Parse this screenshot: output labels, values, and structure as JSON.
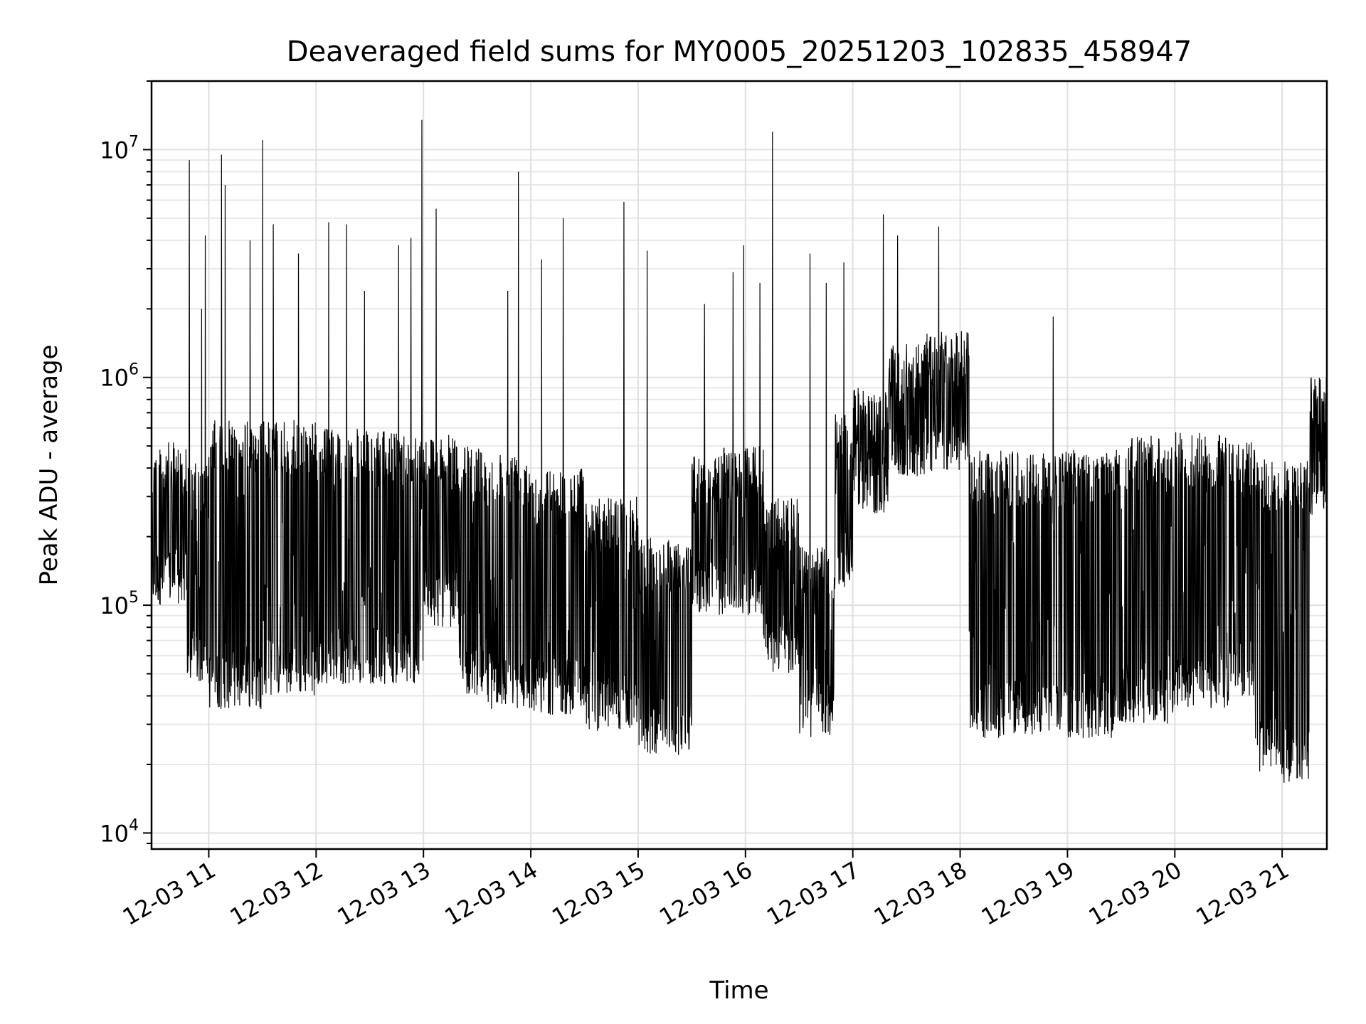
{
  "chart_data": {
    "type": "line",
    "title": "Deaveraged field sums for MY0005_20251203_102835_458947",
    "xlabel": "Time",
    "ylabel": "Peak ADU - average",
    "yscale": "log",
    "ylim": [
      8500,
      20000000
    ],
    "xlim": [
      "2025-12-03 10:28",
      "2025-12-03 21:25"
    ],
    "grid": true,
    "x_ticks": [
      "12-03 11",
      "12-03 12",
      "12-03 13",
      "12-03 14",
      "12-03 15",
      "12-03 16",
      "12-03 17",
      "12-03 18",
      "12-03 19",
      "12-03 20",
      "12-03 21"
    ],
    "y_ticks": [
      {
        "base": "10",
        "exp": "4",
        "value": 10000
      },
      {
        "base": "10",
        "exp": "5",
        "value": 100000
      },
      {
        "base": "10",
        "exp": "6",
        "value": 1000000
      },
      {
        "base": "10",
        "exp": "7",
        "value": 10000000
      }
    ],
    "series": [
      {
        "color": "#000000",
        "segments": [
          {
            "start": "2025-12-03 10:28",
            "end": "2025-12-03 10:48",
            "low": 100000,
            "high": 520000
          },
          {
            "start": "2025-12-03 10:48",
            "end": "2025-12-03 11:00",
            "low": 45000,
            "high": 420000
          },
          {
            "start": "2025-12-03 11:00",
            "end": "2025-12-03 11:30",
            "low": 35000,
            "high": 650000
          },
          {
            "start": "2025-12-03 11:30",
            "end": "2025-12-03 12:00",
            "low": 40000,
            "high": 650000
          },
          {
            "start": "2025-12-03 12:00",
            "end": "2025-12-03 12:30",
            "low": 45000,
            "high": 600000
          },
          {
            "start": "2025-12-03 12:30",
            "end": "2025-12-03 13:00",
            "low": 45000,
            "high": 580000
          },
          {
            "start": "2025-12-03 13:00",
            "end": "2025-12-03 13:20",
            "low": 80000,
            "high": 560000
          },
          {
            "start": "2025-12-03 13:20",
            "end": "2025-12-03 13:35",
            "low": 40000,
            "high": 500000
          },
          {
            "start": "2025-12-03 13:35",
            "end": "2025-12-03 14:00",
            "low": 35000,
            "high": 480000
          },
          {
            "start": "2025-12-03 14:00",
            "end": "2025-12-03 14:30",
            "low": 33000,
            "high": 400000
          },
          {
            "start": "2025-12-03 14:30",
            "end": "2025-12-03 15:00",
            "low": 28000,
            "high": 300000
          },
          {
            "start": "2025-12-03 15:00",
            "end": "2025-12-03 15:30",
            "low": 22000,
            "high": 200000
          },
          {
            "start": "2025-12-03 15:30",
            "end": "2025-12-03 15:45",
            "low": 90000,
            "high": 450000
          },
          {
            "start": "2025-12-03 15:45",
            "end": "2025-12-03 16:10",
            "low": 90000,
            "high": 500000
          },
          {
            "start": "2025-12-03 16:10",
            "end": "2025-12-03 16:30",
            "low": 50000,
            "high": 300000
          },
          {
            "start": "2025-12-03 16:30",
            "end": "2025-12-03 16:50",
            "low": 26000,
            "high": 180000
          },
          {
            "start": "2025-12-03 16:50",
            "end": "2025-12-03 17:00",
            "low": 120000,
            "high": 700000
          },
          {
            "start": "2025-12-03 17:00",
            "end": "2025-12-03 17:20",
            "low": 250000,
            "high": 900000
          },
          {
            "start": "2025-12-03 17:20",
            "end": "2025-12-03 17:40",
            "low": 350000,
            "high": 1400000
          },
          {
            "start": "2025-12-03 17:40",
            "end": "2025-12-03 18:05",
            "low": 380000,
            "high": 1600000
          },
          {
            "start": "2025-12-03 18:05",
            "end": "2025-12-03 18:30",
            "low": 26000,
            "high": 480000
          },
          {
            "start": "2025-12-03 18:30",
            "end": "2025-12-03 19:00",
            "low": 27000,
            "high": 480000
          },
          {
            "start": "2025-12-03 19:00",
            "end": "2025-12-03 19:30",
            "low": 26000,
            "high": 490000
          },
          {
            "start": "2025-12-03 19:30",
            "end": "2025-12-03 20:00",
            "low": 30000,
            "high": 560000
          },
          {
            "start": "2025-12-03 20:00",
            "end": "2025-12-03 20:30",
            "low": 35000,
            "high": 580000
          },
          {
            "start": "2025-12-03 20:30",
            "end": "2025-12-03 20:45",
            "low": 40000,
            "high": 520000
          },
          {
            "start": "2025-12-03 20:45",
            "end": "2025-12-03 21:00",
            "low": 18000,
            "high": 450000
          },
          {
            "start": "2025-12-03 21:00",
            "end": "2025-12-03 21:15",
            "low": 16000,
            "high": 430000
          },
          {
            "start": "2025-12-03 21:15",
            "end": "2025-12-03 21:25",
            "low": 250000,
            "high": 1000000
          }
        ],
        "spikes": [
          {
            "t": "2025-12-03 10:49",
            "y": 9000000
          },
          {
            "t": "2025-12-03 10:56",
            "y": 2000000
          },
          {
            "t": "2025-12-03 10:58",
            "y": 4200000
          },
          {
            "t": "2025-12-03 11:07",
            "y": 9500000
          },
          {
            "t": "2025-12-03 11:09",
            "y": 7000000
          },
          {
            "t": "2025-12-03 11:23",
            "y": 4000000
          },
          {
            "t": "2025-12-03 11:30",
            "y": 11000000
          },
          {
            "t": "2025-12-03 11:36",
            "y": 4700000
          },
          {
            "t": "2025-12-03 11:50",
            "y": 3500000
          },
          {
            "t": "2025-12-03 12:07",
            "y": 4800000
          },
          {
            "t": "2025-12-03 12:17",
            "y": 4700000
          },
          {
            "t": "2025-12-03 12:27",
            "y": 2400000
          },
          {
            "t": "2025-12-03 12:46",
            "y": 3800000
          },
          {
            "t": "2025-12-03 12:53",
            "y": 4100000
          },
          {
            "t": "2025-12-03 12:59",
            "y": 13500000
          },
          {
            "t": "2025-12-03 13:07",
            "y": 5500000
          },
          {
            "t": "2025-12-03 13:47",
            "y": 2400000
          },
          {
            "t": "2025-12-03 13:53",
            "y": 8000000
          },
          {
            "t": "2025-12-03 14:06",
            "y": 3300000
          },
          {
            "t": "2025-12-03 14:18",
            "y": 5000000
          },
          {
            "t": "2025-12-03 14:52",
            "y": 5900000
          },
          {
            "t": "2025-12-03 15:05",
            "y": 3600000
          },
          {
            "t": "2025-12-03 15:37",
            "y": 2100000
          },
          {
            "t": "2025-12-03 15:53",
            "y": 2900000
          },
          {
            "t": "2025-12-03 15:59",
            "y": 3800000
          },
          {
            "t": "2025-12-03 16:08",
            "y": 2600000
          },
          {
            "t": "2025-12-03 16:15",
            "y": 12000000
          },
          {
            "t": "2025-12-03 16:36",
            "y": 3500000
          },
          {
            "t": "2025-12-03 16:45",
            "y": 2600000
          },
          {
            "t": "2025-12-03 16:55",
            "y": 3200000
          },
          {
            "t": "2025-12-03 17:17",
            "y": 5200000
          },
          {
            "t": "2025-12-03 17:25",
            "y": 4200000
          },
          {
            "t": "2025-12-03 17:48",
            "y": 4600000
          },
          {
            "t": "2025-12-03 18:52",
            "y": 1850000
          }
        ]
      }
    ]
  }
}
